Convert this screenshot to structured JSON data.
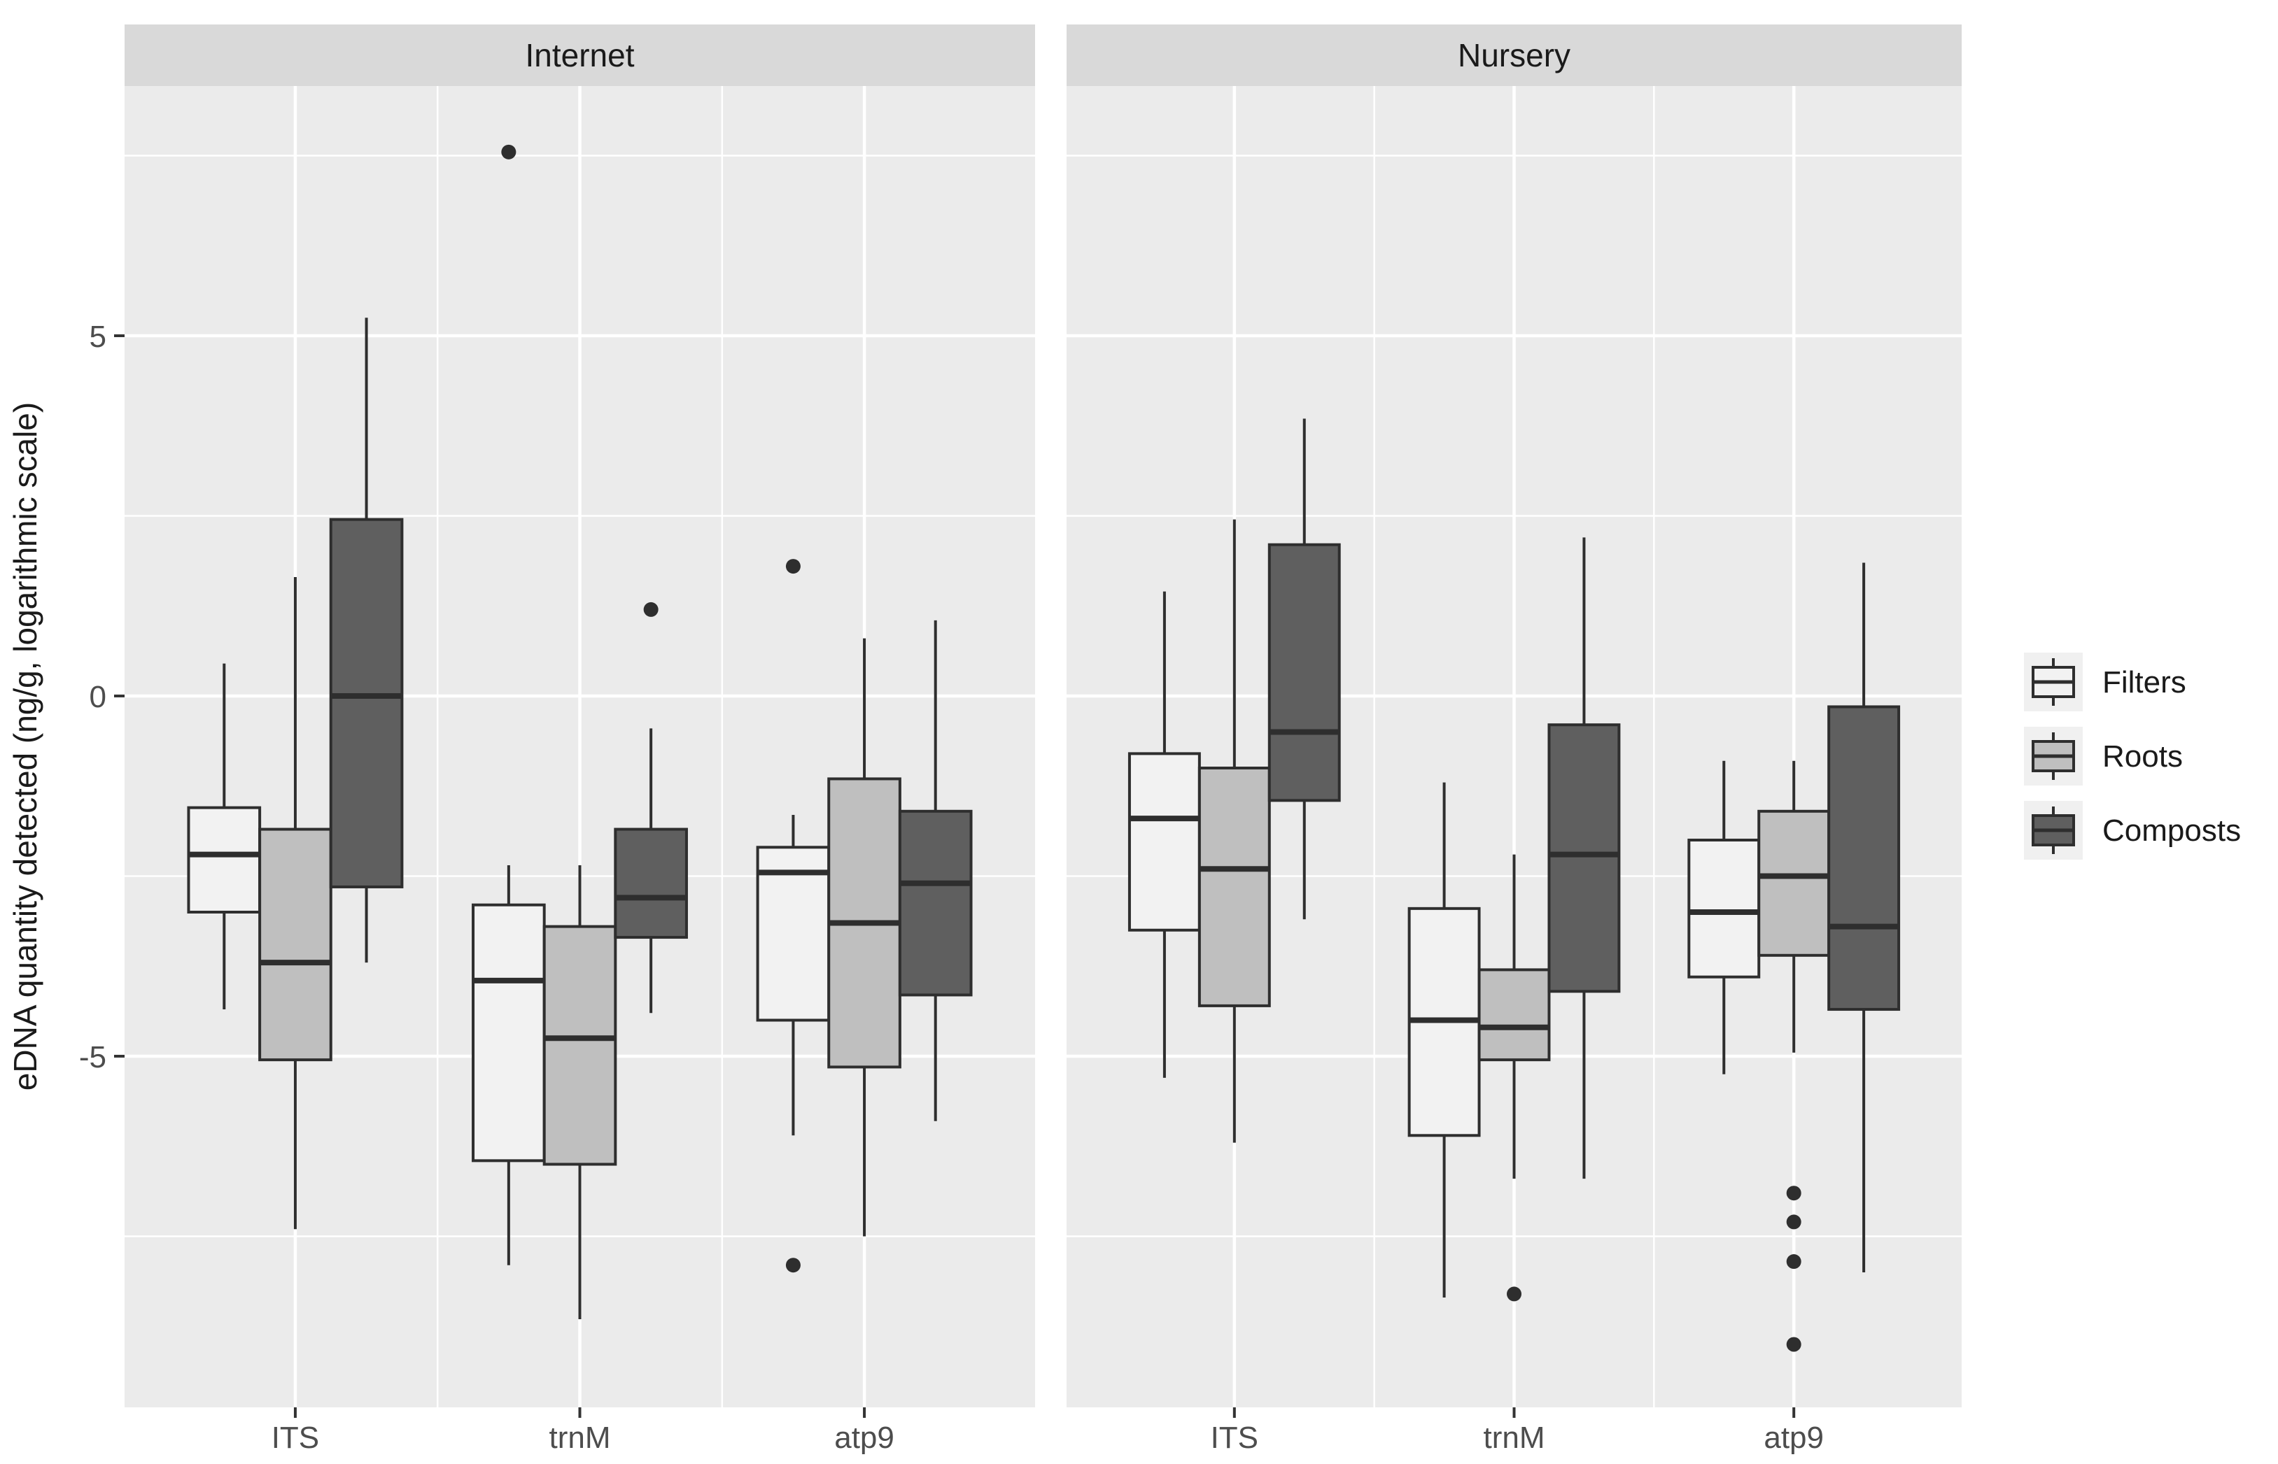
{
  "figure": {
    "background": "#ffffff"
  },
  "facet_labels": [
    "Internet",
    "Nursery"
  ],
  "y_axis": {
    "title": "eDNA quantity detected (ng/g, logarithmic scale)",
    "tick_labels": [
      "5",
      "0",
      "-5"
    ],
    "tick_values": [
      5,
      0,
      -5
    ],
    "minor_gridline_values": [
      7.5,
      2.5,
      -2.5,
      -7.5
    ],
    "limits": [
      -9.87,
      8.47
    ]
  },
  "x_axis": {
    "categories": [
      "ITS",
      "trnM",
      "atp9"
    ]
  },
  "legend": {
    "items": [
      {
        "label": "Filters",
        "fill": "#f2f2f2"
      },
      {
        "label": "Roots",
        "fill": "#bfbfbf"
      },
      {
        "label": "Composts",
        "fill": "#5f5f5f"
      }
    ]
  },
  "colors": {
    "panel_bg": "#ebebeb",
    "strip_bg": "#d9d9d9",
    "gridline": "#ffffff",
    "box_border": "#2e2e2e",
    "outlier": "#2e2e2e",
    "tick_mark": "#333333",
    "tick_text": "#4d4d4d",
    "label_text": "#1a1a1a",
    "legend_key_bg": "#f0f0f0"
  },
  "chart_data": {
    "type": "boxplot",
    "facets": [
      "Internet",
      "Nursery"
    ],
    "categories": [
      "ITS",
      "trnM",
      "atp9"
    ],
    "series": [
      "Filters",
      "Roots",
      "Composts"
    ],
    "title": "",
    "xlabel": "",
    "ylabel": "eDNA quantity detected (ng/g, logarithmic scale)",
    "ylim": [
      -9.87,
      8.47
    ],
    "grid": true,
    "legend_position": "right",
    "boxes": [
      {
        "facet": "Internet",
        "category": "ITS",
        "series": "Filters",
        "whisker_low": -4.35,
        "q1": -3.0,
        "median": -2.2,
        "q3": -1.55,
        "whisker_high": 0.45,
        "outliers": []
      },
      {
        "facet": "Internet",
        "category": "ITS",
        "series": "Roots",
        "whisker_low": -7.4,
        "q1": -5.05,
        "median": -3.7,
        "q3": -1.85,
        "whisker_high": 1.65,
        "outliers": []
      },
      {
        "facet": "Internet",
        "category": "ITS",
        "series": "Composts",
        "whisker_low": -3.7,
        "q1": -2.65,
        "median": 0.0,
        "q3": 2.45,
        "whisker_high": 5.25,
        "outliers": []
      },
      {
        "facet": "Internet",
        "category": "trnM",
        "series": "Filters",
        "whisker_low": -7.9,
        "q1": -6.45,
        "median": -3.95,
        "q3": -2.9,
        "whisker_high": -2.35,
        "outliers": [
          7.55
        ]
      },
      {
        "facet": "Internet",
        "category": "trnM",
        "series": "Roots",
        "whisker_low": -8.65,
        "q1": -6.5,
        "median": -4.75,
        "q3": -3.2,
        "whisker_high": -2.35,
        "outliers": []
      },
      {
        "facet": "Internet",
        "category": "trnM",
        "series": "Composts",
        "whisker_low": -4.4,
        "q1": -3.35,
        "median": -2.8,
        "q3": -1.85,
        "whisker_high": -0.45,
        "outliers": [
          1.2
        ]
      },
      {
        "facet": "Internet",
        "category": "atp9",
        "series": "Filters",
        "whisker_low": -6.1,
        "q1": -4.5,
        "median": -2.45,
        "q3": -2.1,
        "whisker_high": -1.65,
        "outliers": [
          1.8,
          -7.9
        ]
      },
      {
        "facet": "Internet",
        "category": "atp9",
        "series": "Roots",
        "whisker_low": -7.5,
        "q1": -5.15,
        "median": -3.15,
        "q3": -1.15,
        "whisker_high": 0.8,
        "outliers": []
      },
      {
        "facet": "Internet",
        "category": "atp9",
        "series": "Composts",
        "whisker_low": -5.9,
        "q1": -4.15,
        "median": -2.6,
        "q3": -1.6,
        "whisker_high": 1.05,
        "outliers": []
      },
      {
        "facet": "Nursery",
        "category": "ITS",
        "series": "Filters",
        "whisker_low": -5.3,
        "q1": -3.25,
        "median": -1.7,
        "q3": -0.8,
        "whisker_high": 1.45,
        "outliers": []
      },
      {
        "facet": "Nursery",
        "category": "ITS",
        "series": "Roots",
        "whisker_low": -6.2,
        "q1": -4.3,
        "median": -2.4,
        "q3": -1.0,
        "whisker_high": 2.45,
        "outliers": []
      },
      {
        "facet": "Nursery",
        "category": "ITS",
        "series": "Composts",
        "whisker_low": -3.1,
        "q1": -1.45,
        "median": -0.5,
        "q3": 2.1,
        "whisker_high": 3.85,
        "outliers": []
      },
      {
        "facet": "Nursery",
        "category": "trnM",
        "series": "Filters",
        "whisker_low": -8.35,
        "q1": -6.1,
        "median": -4.5,
        "q3": -2.95,
        "whisker_high": -1.2,
        "outliers": []
      },
      {
        "facet": "Nursery",
        "category": "trnM",
        "series": "Roots",
        "whisker_low": -6.7,
        "q1": -5.05,
        "median": -4.6,
        "q3": -3.8,
        "whisker_high": -2.2,
        "outliers": [
          -8.3
        ]
      },
      {
        "facet": "Nursery",
        "category": "trnM",
        "series": "Composts",
        "whisker_low": -6.7,
        "q1": -4.1,
        "median": -2.2,
        "q3": -0.4,
        "whisker_high": 2.2,
        "outliers": []
      },
      {
        "facet": "Nursery",
        "category": "atp9",
        "series": "Filters",
        "whisker_low": -5.25,
        "q1": -3.9,
        "median": -3.0,
        "q3": -2.0,
        "whisker_high": -0.9,
        "outliers": []
      },
      {
        "facet": "Nursery",
        "category": "atp9",
        "series": "Roots",
        "whisker_low": -4.95,
        "q1": -3.6,
        "median": -2.5,
        "q3": -1.6,
        "whisker_high": -0.9,
        "outliers": [
          -6.9,
          -7.3,
          -7.85,
          -9.0
        ]
      },
      {
        "facet": "Nursery",
        "category": "atp9",
        "series": "Composts",
        "whisker_low": -8.0,
        "q1": -4.35,
        "median": -3.2,
        "q3": -0.15,
        "whisker_high": 1.85,
        "outliers": []
      }
    ]
  }
}
